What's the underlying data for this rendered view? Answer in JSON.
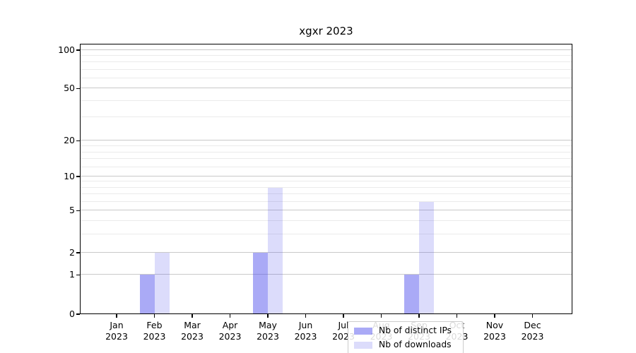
{
  "chart_data": {
    "type": "bar",
    "title": "xgxr 2023",
    "categories": [
      "Jan",
      "Feb",
      "Mar",
      "Apr",
      "May",
      "Jun",
      "Jul",
      "Aug",
      "Sep",
      "Oct",
      "Nov",
      "Dec"
    ],
    "category_year": "2023",
    "series": [
      {
        "name": "Nb of distinct IPs",
        "color": "rgba(70,70,235,0.46)",
        "values": [
          0,
          1,
          0,
          0,
          2,
          0,
          0,
          0,
          1,
          0,
          0,
          0
        ]
      },
      {
        "name": "Nb of downloads",
        "color": "rgba(70,70,235,0.19)",
        "values": [
          0,
          2,
          0,
          0,
          8,
          0,
          0,
          0,
          6,
          0,
          0,
          0
        ]
      }
    ],
    "y_axis": {
      "scale": "log-like with linear segment below 1",
      "major_ticks": [
        0,
        1,
        2,
        5,
        10,
        20,
        50,
        100
      ],
      "minor_ticks": [
        3,
        4,
        6,
        7,
        8,
        9,
        12,
        14,
        16,
        18,
        30,
        40,
        60,
        70,
        80,
        90
      ],
      "ylim": [
        0,
        112
      ],
      "tick_fractions": [
        [
          0,
          0
        ],
        [
          1,
          0.145
        ],
        [
          2,
          0.227
        ],
        [
          5,
          0.383
        ],
        [
          10,
          0.509
        ],
        [
          20,
          0.642
        ],
        [
          50,
          0.835
        ],
        [
          100,
          0.9765
        ]
      ]
    },
    "x_axis": {
      "label_format": "month over year, two lines"
    },
    "legend": {
      "position": "lower-center",
      "entries": [
        "Nb of distinct IPs",
        "Nb of downloads"
      ]
    },
    "grid": {
      "major_color": "#c9c9c9",
      "minor_color": "#ebebeb"
    }
  }
}
